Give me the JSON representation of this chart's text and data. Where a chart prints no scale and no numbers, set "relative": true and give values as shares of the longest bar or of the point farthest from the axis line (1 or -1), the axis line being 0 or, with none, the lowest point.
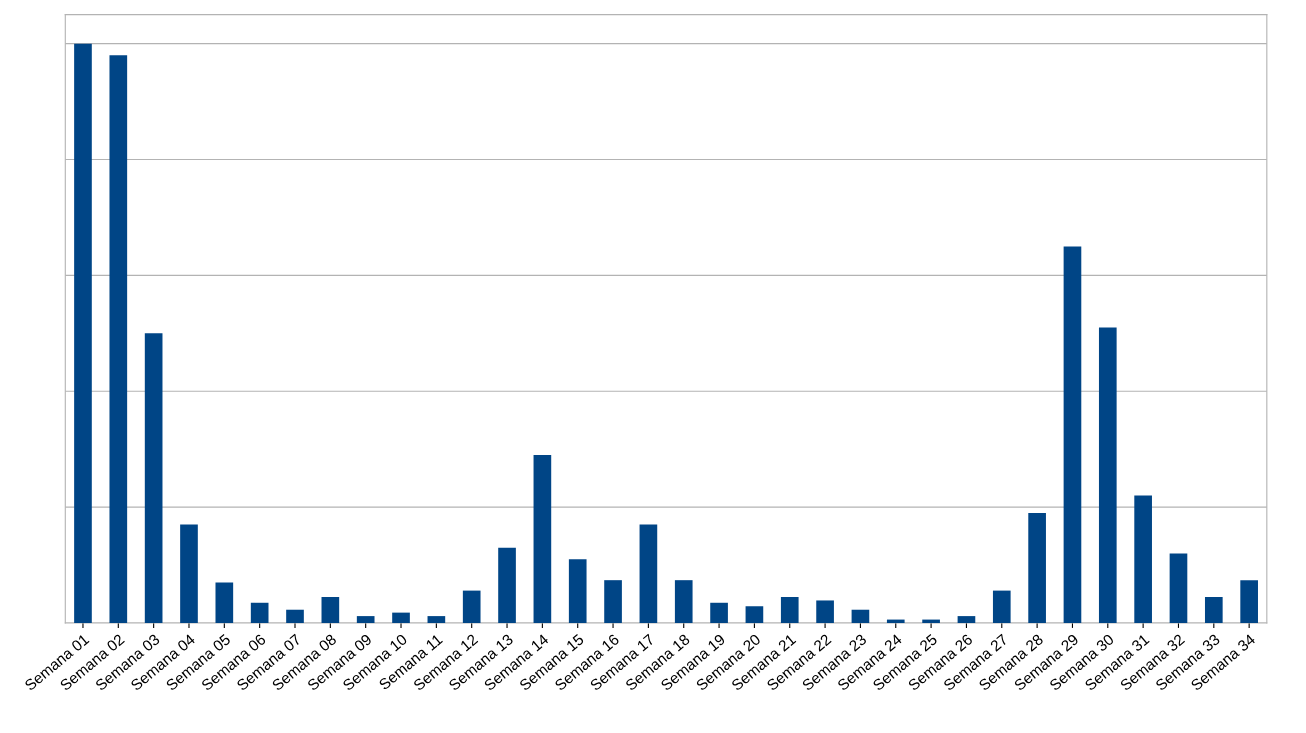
{
  "chart_data": {
    "type": "bar",
    "relative": true,
    "color": "#004586",
    "grid": "y",
    "categories": [
      "Semana 01",
      "Semana 02",
      "Semana 03",
      "Semana 04",
      "Semana 05",
      "Semana 06",
      "Semana 07",
      "Semana 08",
      "Semana 09",
      "Semana 10",
      "Semana 11",
      "Semana 12",
      "Semana 13",
      "Semana 14",
      "Semana 15",
      "Semana 16",
      "Semana 17",
      "Semana 18",
      "Semana 19",
      "Semana 20",
      "Semana 21",
      "Semana 22",
      "Semana 23",
      "Semana 24",
      "Semana 25",
      "Semana 26",
      "Semana 27",
      "Semana 28",
      "Semana 29",
      "Semana 30",
      "Semana 31",
      "Semana 32",
      "Semana 33",
      "Semana 34"
    ],
    "values": [
      1,
      0.98,
      0.5,
      0.17,
      0.07,
      0.035,
      0.023,
      0.045,
      0.012,
      0.018,
      0.012,
      0.056,
      0.13,
      0.29,
      0.11,
      0.074,
      0.17,
      0.074,
      0.035,
      0.029,
      0.045,
      0.039,
      0.023,
      0.006,
      0.006,
      0.012,
      0.056,
      0.19,
      0.65,
      0.51,
      0.22,
      0.12,
      0.045,
      0.074
    ]
  }
}
